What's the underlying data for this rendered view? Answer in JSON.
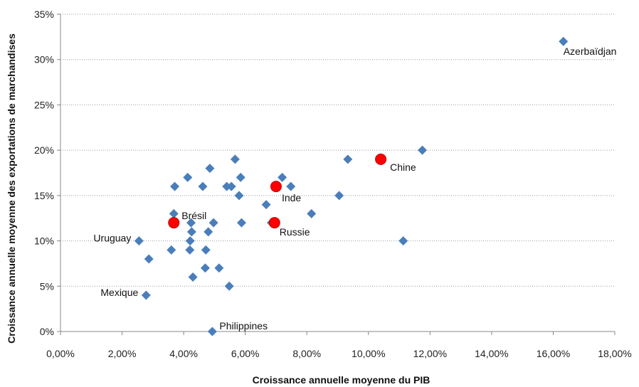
{
  "chart_data": {
    "type": "scatter",
    "xlabel": "Croissance annuelle moyenne du PIB",
    "ylabel": "Croissance annuelle moyenne des exportations de marchandises",
    "xlim": [
      0,
      0.18
    ],
    "ylim": [
      0,
      0.35
    ],
    "x_ticks": [
      "0,00%",
      "2,00%",
      "4,00%",
      "6,00%",
      "8,00%",
      "10,00%",
      "12,00%",
      "14,00%",
      "16,00%",
      "18,00%"
    ],
    "y_ticks": [
      "0%",
      "5%",
      "10%",
      "15%",
      "20%",
      "25%",
      "30%",
      "35%"
    ],
    "grid": "horizontal",
    "colors": {
      "diamond": "#4a7ebb",
      "highlight": "#ff0000"
    },
    "diamonds": [
      {
        "x": 0.1633,
        "y": 0.32
      },
      {
        "x": 0.0255,
        "y": 0.1
      },
      {
        "x": 0.0278,
        "y": 0.04
      },
      {
        "x": 0.0493,
        "y": 0.0
      },
      {
        "x": 0.0287,
        "y": 0.08
      },
      {
        "x": 0.036,
        "y": 0.09
      },
      {
        "x": 0.0368,
        "y": 0.13
      },
      {
        "x": 0.0371,
        "y": 0.16
      },
      {
        "x": 0.0413,
        "y": 0.17
      },
      {
        "x": 0.042,
        "y": 0.09
      },
      {
        "x": 0.0421,
        "y": 0.1
      },
      {
        "x": 0.0424,
        "y": 0.12
      },
      {
        "x": 0.0426,
        "y": 0.11
      },
      {
        "x": 0.043,
        "y": 0.06
      },
      {
        "x": 0.0462,
        "y": 0.16
      },
      {
        "x": 0.047,
        "y": 0.07
      },
      {
        "x": 0.0472,
        "y": 0.09
      },
      {
        "x": 0.048,
        "y": 0.11
      },
      {
        "x": 0.0485,
        "y": 0.18
      },
      {
        "x": 0.0497,
        "y": 0.12
      },
      {
        "x": 0.0515,
        "y": 0.07
      },
      {
        "x": 0.054,
        "y": 0.16
      },
      {
        "x": 0.0548,
        "y": 0.05
      },
      {
        "x": 0.0555,
        "y": 0.16
      },
      {
        "x": 0.0567,
        "y": 0.19
      },
      {
        "x": 0.058,
        "y": 0.15
      },
      {
        "x": 0.0585,
        "y": 0.17
      },
      {
        "x": 0.0588,
        "y": 0.12
      },
      {
        "x": 0.0668,
        "y": 0.14
      },
      {
        "x": 0.0685,
        "y": 0.12
      },
      {
        "x": 0.072,
        "y": 0.17
      },
      {
        "x": 0.0748,
        "y": 0.16
      },
      {
        "x": 0.0815,
        "y": 0.13
      },
      {
        "x": 0.0905,
        "y": 0.15
      },
      {
        "x": 0.0933,
        "y": 0.19
      },
      {
        "x": 0.1113,
        "y": 0.1
      },
      {
        "x": 0.1175,
        "y": 0.2
      }
    ],
    "highlights": [
      {
        "x": 0.0368,
        "y": 0.12
      },
      {
        "x": 0.0695,
        "y": 0.12
      },
      {
        "x": 0.07,
        "y": 0.16
      },
      {
        "x": 0.104,
        "y": 0.19
      }
    ],
    "annotations": [
      {
        "text": "Azerbaïdjan",
        "x": 0.1633,
        "y": 0.32
      },
      {
        "text": "Chine",
        "x": 0.104,
        "y": 0.19
      },
      {
        "text": "Inde",
        "x": 0.07,
        "y": 0.16
      },
      {
        "text": "Russie",
        "x": 0.0695,
        "y": 0.12
      },
      {
        "text": "Brésil",
        "x": 0.0368,
        "y": 0.12
      },
      {
        "text": "Uruguay",
        "x": 0.0255,
        "y": 0.1
      },
      {
        "text": "Mexique",
        "x": 0.0278,
        "y": 0.04
      },
      {
        "text": "Philippines",
        "x": 0.0493,
        "y": 0.0
      }
    ]
  }
}
